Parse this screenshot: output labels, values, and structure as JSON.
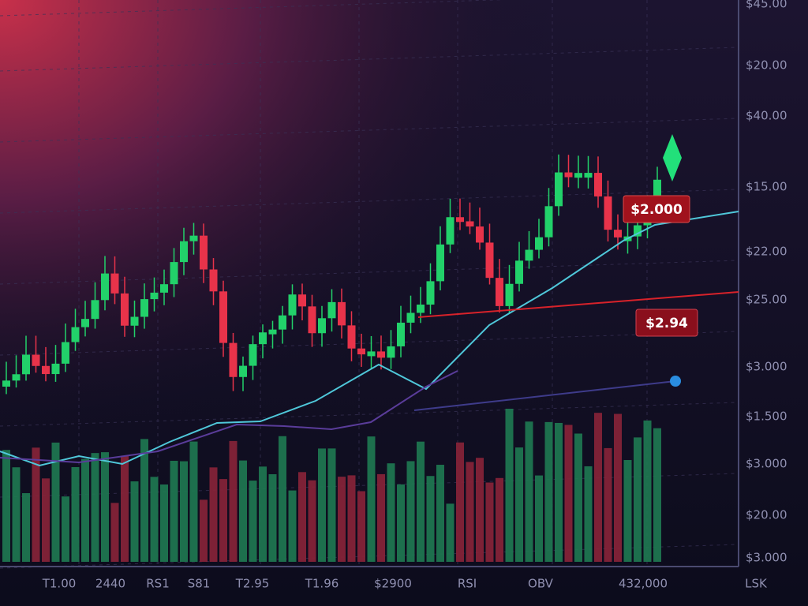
{
  "axis_labels": [
    "$45.00",
    "$20.00",
    "$40.00",
    "$15.00",
    "$22.00",
    "$25.00",
    "$3.000",
    "$1.500",
    "$3.000",
    "$20.00",
    "$3.000"
  ],
  "bottom_labels": [
    "T1.00",
    "2440",
    "RS1",
    "S81",
    "T2.95",
    "T1.96",
    "$2900",
    "RSI",
    "OBV",
    "432,000",
    "LSK"
  ],
  "price_tags": [
    "$2.000",
    "$2.94"
  ]
}
